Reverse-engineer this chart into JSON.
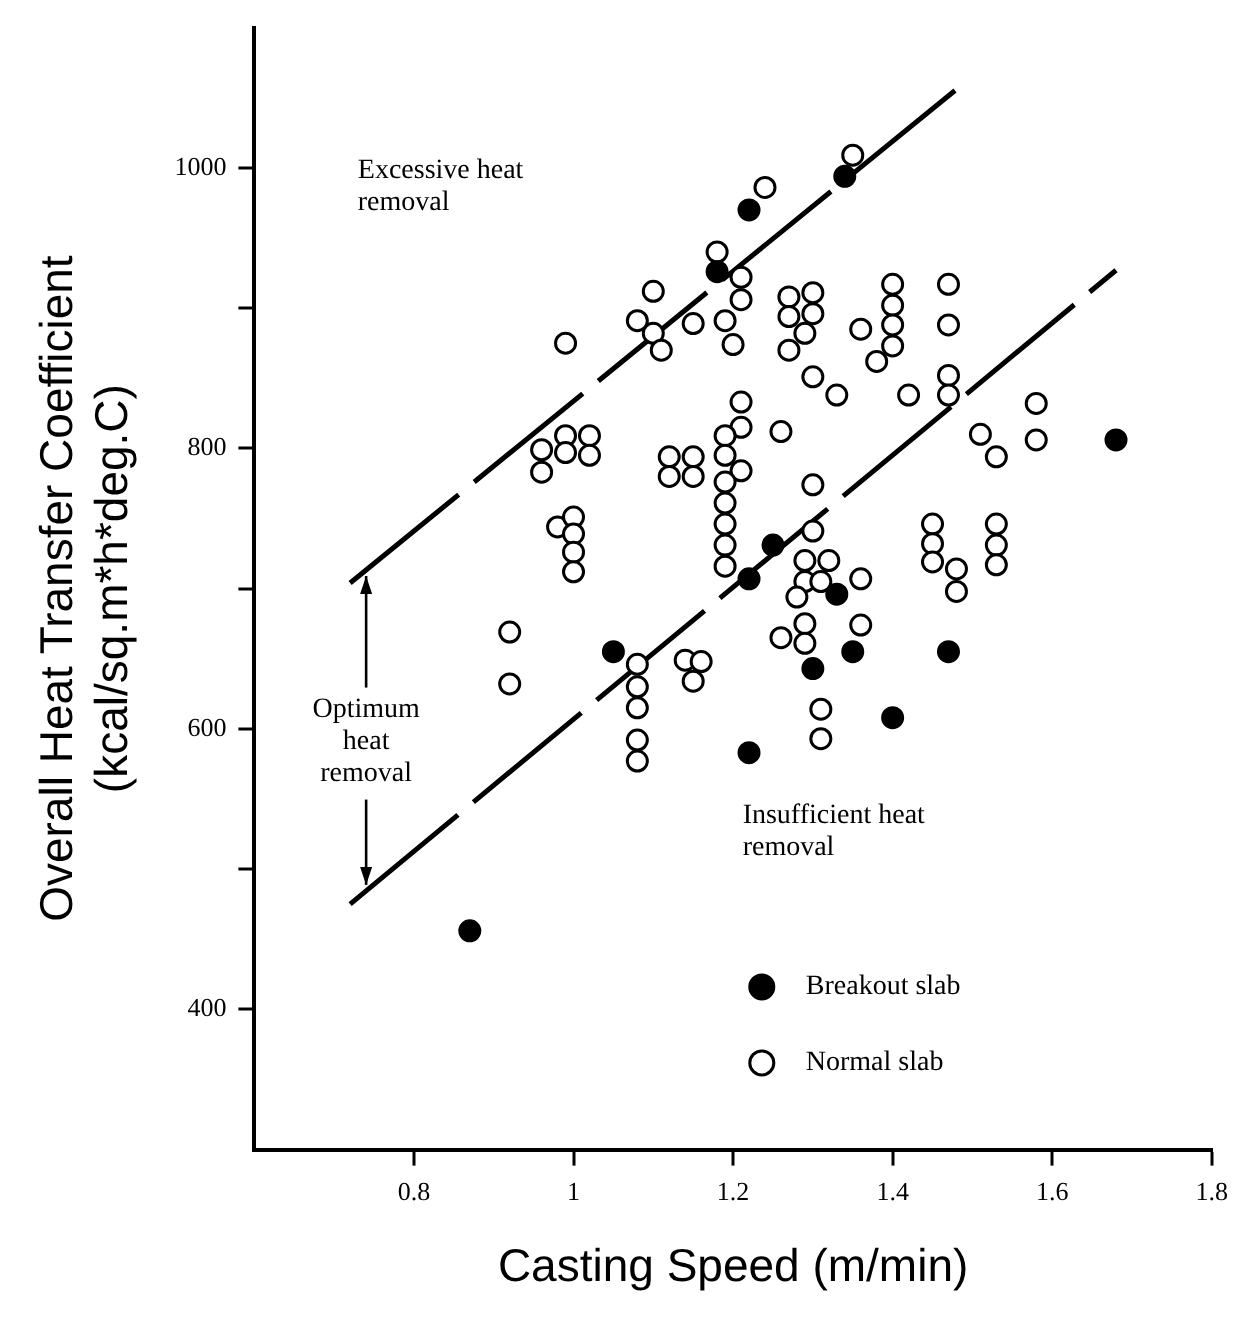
{
  "chart_data": {
    "type": "scatter",
    "xlabel": "Casting Speed (m/min)",
    "ylabel": "Overall Heat Transfer Coefficient\n(kcal/sq.m*h*deg.C)",
    "xlim": [
      0.6,
      1.8
    ],
    "xticks": [
      0.8,
      1,
      1.2,
      1.4,
      1.6,
      1.8
    ],
    "ylim": [
      300,
      1100
    ],
    "yticks": [
      400,
      {
        "value": 500,
        "label": null
      },
      600,
      {
        "value": 700,
        "label": null
      },
      800,
      {
        "value": 900,
        "label": null
      },
      1000
    ],
    "grid": false,
    "legend": "bottom right",
    "marker": "circle",
    "annotations": [
      "Excessive heat removal",
      {
        "text": "Optimum heat removal",
        "x": 0.72,
        "y": 704
      },
      "Insufficient heat removal"
    ],
    "series": [
      {
        "name": "Breakout slab",
        "color": "#000000",
        "x": [
          0.87,
          1.05,
          1.34,
          1.22,
          1.18,
          1.25,
          1.22,
          1.33,
          1.68,
          1.3,
          1.35,
          1.47,
          1.4,
          1.22
        ],
        "values": [
          456,
          655,
          994,
          970,
          926,
          731,
          707,
          696,
          806,
          643,
          655,
          655,
          608,
          583
        ]
      },
      {
        "name": "Normal slab",
        "color": "#ffffff",
        "x": [
          1.1,
          0.99,
          1.08,
          1.1,
          1.11,
          1.15,
          0.96,
          0.99,
          1.02,
          0.99,
          1.02,
          0.96,
          1.12,
          1.15,
          1.12,
          1.15,
          0.98,
          1.0,
          1.0,
          1.0,
          1.0,
          0.92,
          0.92,
          1.08,
          1.08,
          1.08,
          1.08,
          1.08,
          1.14,
          1.16,
          1.15,
          1.35,
          1.24,
          1.18,
          1.21,
          1.21,
          1.19,
          1.2,
          1.27,
          1.3,
          1.27,
          1.3,
          1.29,
          1.27,
          1.36,
          1.4,
          1.4,
          1.4,
          1.4,
          1.38,
          1.47,
          1.47,
          1.3,
          1.33,
          1.42,
          1.47,
          1.47,
          1.21,
          1.21,
          1.19,
          1.19,
          1.21,
          1.19,
          1.19,
          1.19,
          1.19,
          1.19,
          1.26,
          1.3,
          1.3,
          1.29,
          1.32,
          1.29,
          1.31,
          1.28,
          1.36,
          1.45,
          1.45,
          1.45,
          1.48,
          1.48,
          1.53,
          1.53,
          1.53,
          1.51,
          1.53,
          1.58,
          1.58,
          1.29,
          1.26,
          1.29,
          1.36,
          1.31,
          1.31
        ],
        "values": [
          912,
          875,
          891,
          882,
          870,
          889,
          799,
          809,
          809,
          797,
          795,
          783,
          794,
          794,
          780,
          780,
          744,
          751,
          739,
          726,
          712,
          669,
          632,
          646,
          630,
          615,
          592,
          577,
          649,
          648,
          634,
          1009,
          986,
          940,
          922,
          906,
          891,
          874,
          908,
          911,
          894,
          896,
          882,
          870,
          885,
          917,
          902,
          888,
          873,
          862,
          917,
          888,
          851,
          838,
          838,
          852,
          838,
          833,
          815,
          809,
          795,
          784,
          776,
          761,
          746,
          731,
          716,
          812,
          774,
          741,
          720,
          720,
          705,
          705,
          694,
          707,
          746,
          732,
          719,
          714,
          698,
          746,
          731,
          717,
          810,
          794,
          832,
          806,
          675,
          665,
          661,
          674,
          614,
          593
        ]
      },
      {
        "type": "line",
        "color": "#000000",
        "line_style": "dashed",
        "marker": "none",
        "x": [
          0.72,
          1.48
        ],
        "values": [
          704,
          1056
        ]
      },
      {
        "type": "line",
        "color": "#000000",
        "line_style": "dashed",
        "marker": "none",
        "x": [
          0.72,
          1.68
        ],
        "values": [
          475,
          927
        ]
      }
    ]
  }
}
